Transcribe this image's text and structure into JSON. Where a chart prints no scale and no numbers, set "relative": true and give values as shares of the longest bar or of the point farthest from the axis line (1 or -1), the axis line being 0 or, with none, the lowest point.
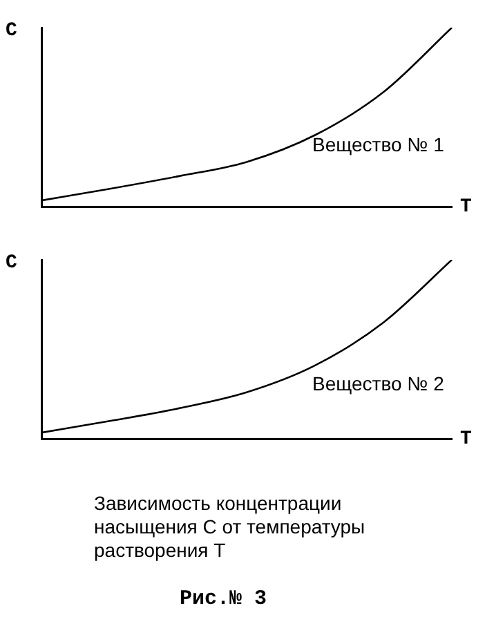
{
  "chart_data": [
    {
      "type": "line",
      "xlabel": "T",
      "ylabel": "C",
      "relative": true,
      "categories": [
        null,
        null,
        null,
        null,
        null,
        null,
        null
      ],
      "series": [
        {
          "color": "#000000",
          "values": [
            0.035,
            0.1,
            0.17,
            0.25,
            0.4,
            0.64,
            1
          ]
        }
      ],
      "annotations": [
        "Вещество № 1"
      ],
      "marker": "none",
      "legend": false,
      "grid": false
    },
    {
      "type": "line",
      "xlabel": "T",
      "ylabel": "C",
      "relative": true,
      "categories": [
        null,
        null,
        null,
        null,
        null,
        null,
        null
      ],
      "series": [
        {
          "color": "#000000",
          "values": [
            0.035,
            0.1,
            0.17,
            0.26,
            0.41,
            0.65,
            1
          ]
        }
      ],
      "annotations": [
        "Вещество № 2",
        "Зависимость концентрации насыщения С от температуры растворения Т",
        "Рис.№ 3"
      ],
      "marker": "none",
      "legend": false,
      "grid": false
    }
  ]
}
